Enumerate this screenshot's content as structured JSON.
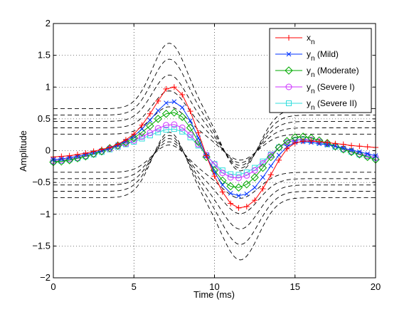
{
  "chart_data": {
    "type": "line",
    "xlabel": "Time (ms)",
    "ylabel": "Amplitude",
    "xlim": [
      0,
      20
    ],
    "ylim": [
      -2,
      2
    ],
    "xticks": [
      0,
      5,
      10,
      15,
      20
    ],
    "yticks": [
      -2,
      -1.5,
      -1,
      -0.5,
      0,
      0.5,
      1,
      1.5,
      2
    ],
    "grid": true,
    "legend_position": "top-right",
    "x": [
      0,
      0.5,
      1,
      1.5,
      2,
      2.5,
      3,
      3.5,
      4,
      4.5,
      5,
      5.5,
      6,
      6.5,
      7,
      7.5,
      8,
      8.5,
      9,
      9.5,
      10,
      10.5,
      11,
      11.5,
      12,
      12.5,
      13,
      13.5,
      14,
      14.5,
      15,
      15.5,
      16,
      16.5,
      17,
      17.5,
      18,
      18.5,
      19,
      19.5,
      20
    ],
    "series": [
      {
        "name": "x",
        "subscript": "n",
        "label_suffix": "",
        "color": "#ff0000",
        "marker": "plus",
        "values": [
          -0.1,
          -0.09,
          -0.08,
          -0.06,
          -0.04,
          -0.01,
          0.02,
          0.05,
          0.1,
          0.17,
          0.26,
          0.4,
          0.58,
          0.78,
          0.97,
          1.0,
          0.88,
          0.62,
          0.28,
          -0.08,
          -0.4,
          -0.65,
          -0.83,
          -0.9,
          -0.88,
          -0.78,
          -0.6,
          -0.38,
          -0.15,
          0.03,
          0.12,
          0.15,
          0.15,
          0.14,
          0.13,
          0.11,
          0.1,
          0.08,
          0.07,
          0.06,
          0.05
        ]
      },
      {
        "name": "y",
        "subscript": "n",
        "label_suffix": " (Mild)",
        "color": "#0033ff",
        "marker": "x",
        "values": [
          -0.14,
          -0.13,
          -0.11,
          -0.09,
          -0.06,
          -0.03,
          0.0,
          0.04,
          0.09,
          0.15,
          0.23,
          0.34,
          0.48,
          0.63,
          0.75,
          0.77,
          0.68,
          0.47,
          0.2,
          -0.08,
          -0.34,
          -0.54,
          -0.67,
          -0.71,
          -0.68,
          -0.58,
          -0.42,
          -0.24,
          -0.07,
          0.06,
          0.13,
          0.14,
          0.13,
          0.11,
          0.09,
          0.07,
          0.04,
          0.01,
          -0.02,
          -0.05,
          -0.08
        ]
      },
      {
        "name": "y",
        "subscript": "n",
        "label_suffix": " (Moderate)",
        "color": "#00aa00",
        "marker": "diamond",
        "values": [
          -0.18,
          -0.17,
          -0.15,
          -0.12,
          -0.09,
          -0.05,
          -0.01,
          0.04,
          0.08,
          0.13,
          0.2,
          0.29,
          0.39,
          0.5,
          0.58,
          0.6,
          0.53,
          0.36,
          0.14,
          -0.1,
          -0.31,
          -0.47,
          -0.56,
          -0.58,
          -0.53,
          -0.42,
          -0.27,
          -0.1,
          0.05,
          0.15,
          0.21,
          0.22,
          0.2,
          0.16,
          0.12,
          0.07,
          0.02,
          -0.02,
          -0.06,
          -0.1,
          -0.14
        ]
      },
      {
        "name": "y",
        "subscript": "n",
        "label_suffix": " (Severe I)",
        "color": "#cc33ff",
        "marker": "circle",
        "values": [
          -0.16,
          -0.15,
          -0.13,
          -0.11,
          -0.08,
          -0.05,
          -0.01,
          0.03,
          0.07,
          0.11,
          0.16,
          0.22,
          0.28,
          0.35,
          0.4,
          0.41,
          0.36,
          0.25,
          0.1,
          -0.07,
          -0.22,
          -0.35,
          -0.42,
          -0.43,
          -0.39,
          -0.31,
          -0.2,
          -0.07,
          0.05,
          0.13,
          0.17,
          0.18,
          0.17,
          0.14,
          0.11,
          0.07,
          0.03,
          -0.01,
          -0.05,
          -0.08,
          -0.11
        ]
      },
      {
        "name": "y",
        "subscript": "n",
        "label_suffix": " (Severe II)",
        "color": "#33dddd",
        "marker": "square",
        "values": [
          -0.17,
          -0.16,
          -0.14,
          -0.12,
          -0.09,
          -0.06,
          -0.02,
          0.02,
          0.06,
          0.1,
          0.14,
          0.19,
          0.24,
          0.29,
          0.33,
          0.34,
          0.3,
          0.21,
          0.08,
          -0.07,
          -0.21,
          -0.31,
          -0.37,
          -0.38,
          -0.34,
          -0.27,
          -0.17,
          -0.06,
          0.05,
          0.12,
          0.16,
          0.17,
          0.16,
          0.13,
          0.1,
          0.06,
          0.02,
          -0.02,
          -0.06,
          -0.09,
          -0.12
        ]
      }
    ],
    "dashed_bounds": [
      {
        "base": 0.66,
        "amplitude": 1.03
      },
      {
        "base": 0.56,
        "amplitude": 0.88
      },
      {
        "base": 0.46,
        "amplitude": 0.73
      },
      {
        "base": 0.36,
        "amplitude": 0.58
      },
      {
        "base": 0.26,
        "amplitude": 0.43
      },
      {
        "base": -0.34,
        "amplitude": 0.43
      },
      {
        "base": -0.44,
        "amplitude": 0.58
      },
      {
        "base": -0.54,
        "amplitude": 0.73
      },
      {
        "base": -0.64,
        "amplitude": 0.88
      },
      {
        "base": -0.74,
        "amplitude": 1.03
      }
    ]
  }
}
